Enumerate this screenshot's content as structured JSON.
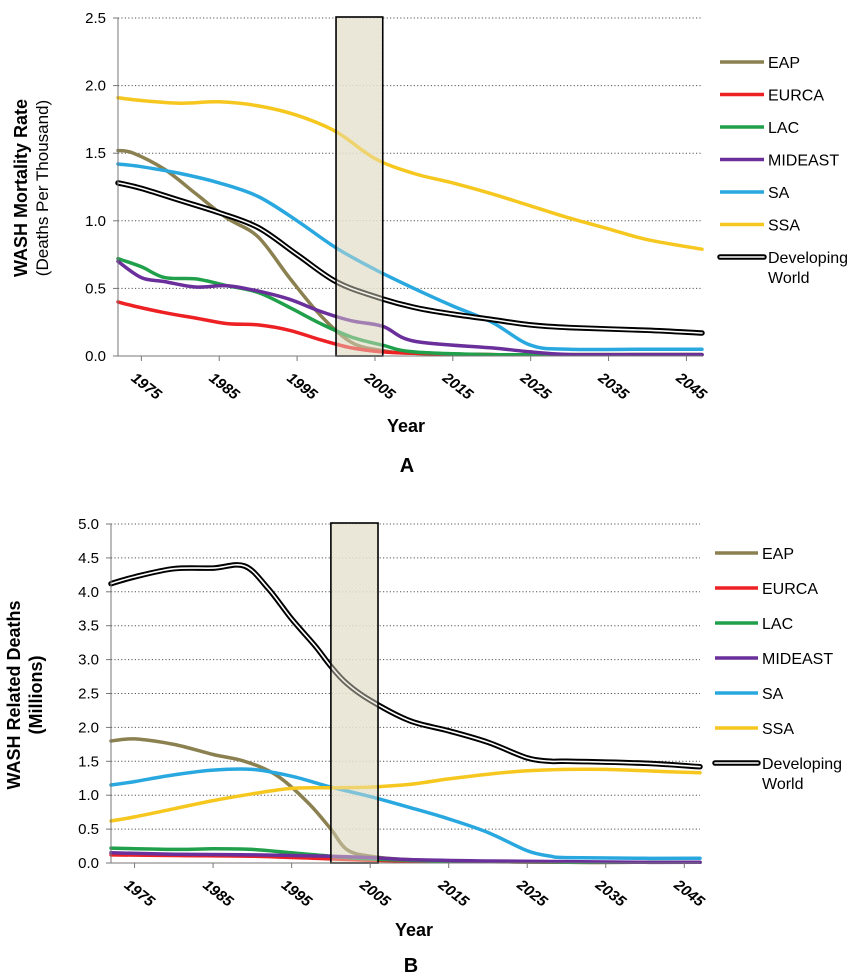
{
  "chart_data": [
    {
      "type": "line",
      "panel_label": "A",
      "xlabel": "Year",
      "ylabel_lines": [
        "WASH Mortality Rate",
        "(Deaths Per Thousand)"
      ],
      "xlim": [
        1972,
        2047
      ],
      "ylim": [
        0,
        2.5
      ],
      "x_ticks": [
        1975,
        1985,
        1995,
        2005,
        2015,
        2025,
        2035,
        2045
      ],
      "x_tick_labels": [
        "1975",
        "1985",
        "1995",
        "2005",
        "2015",
        "2025",
        "2035",
        "2045"
      ],
      "y_ticks": [
        0,
        0.5,
        1.0,
        1.5,
        2.0,
        2.5
      ],
      "y_tick_labels": [
        "0.0",
        "0.5",
        "1.0",
        "1.5",
        "2.0",
        "2.5"
      ],
      "grid": "horizontal dotted",
      "legend_position": "right",
      "highlight_band": [
        2000,
        2006
      ],
      "series": [
        {
          "name": "EAP",
          "color": "#8b8050",
          "x": [
            1972,
            1974,
            1978,
            1982,
            1986,
            1990,
            1994,
            1998,
            2002,
            2006,
            2010,
            2020,
            2030,
            2040,
            2047
          ],
          "y": [
            1.52,
            1.5,
            1.38,
            1.2,
            1.02,
            0.88,
            0.58,
            0.3,
            0.1,
            0.04,
            0.02,
            0.01,
            0.01,
            0.01,
            0.01
          ]
        },
        {
          "name": "EURCA",
          "color": "#ed2024",
          "x": [
            1972,
            1974,
            1978,
            1982,
            1986,
            1990,
            1994,
            1998,
            2002,
            2006,
            2010,
            2020,
            2030,
            2040,
            2047
          ],
          "y": [
            0.4,
            0.37,
            0.32,
            0.28,
            0.24,
            0.23,
            0.19,
            0.12,
            0.06,
            0.03,
            0.02,
            0.01,
            0.01,
            0.01,
            0.01
          ]
        },
        {
          "name": "LAC",
          "color": "#21a04b",
          "x": [
            1972,
            1975,
            1978,
            1982,
            1986,
            1990,
            1994,
            1998,
            2002,
            2006,
            2010,
            2020,
            2030,
            2040,
            2047
          ],
          "y": [
            0.72,
            0.66,
            0.58,
            0.57,
            0.52,
            0.47,
            0.36,
            0.24,
            0.14,
            0.08,
            0.03,
            0.01,
            0.01,
            0.01,
            0.01
          ]
        },
        {
          "name": "MIDEAST",
          "color": "#6a2f9b",
          "x": [
            1972,
            1975,
            1978,
            1982,
            1986,
            1990,
            1994,
            1998,
            2002,
            2006,
            2010,
            2020,
            2025,
            2030,
            2040,
            2047
          ],
          "y": [
            0.7,
            0.58,
            0.55,
            0.51,
            0.52,
            0.48,
            0.42,
            0.33,
            0.26,
            0.22,
            0.11,
            0.06,
            0.03,
            0.01,
            0.01,
            0.01
          ]
        },
        {
          "name": "SA",
          "color": "#29a8e0",
          "x": [
            1972,
            1975,
            1980,
            1985,
            1990,
            1995,
            2000,
            2005,
            2010,
            2015,
            2020,
            2025,
            2030,
            2040,
            2047
          ],
          "y": [
            1.42,
            1.4,
            1.35,
            1.28,
            1.18,
            1.0,
            0.8,
            0.64,
            0.5,
            0.37,
            0.25,
            0.08,
            0.05,
            0.05,
            0.05
          ]
        },
        {
          "name": "SSA",
          "color": "#f6c71e",
          "x": [
            1972,
            1975,
            1980,
            1985,
            1990,
            1995,
            2000,
            2005,
            2010,
            2015,
            2020,
            2025,
            2030,
            2035,
            2040,
            2047
          ],
          "y": [
            1.91,
            1.89,
            1.87,
            1.88,
            1.85,
            1.78,
            1.66,
            1.46,
            1.35,
            1.28,
            1.2,
            1.11,
            1.02,
            0.94,
            0.86,
            0.79
          ]
        },
        {
          "name": "Developing World",
          "color": "#000000",
          "outlined": true,
          "x": [
            1972,
            1975,
            1980,
            1985,
            1990,
            1995,
            2000,
            2005,
            2010,
            2015,
            2020,
            2025,
            2030,
            2040,
            2047
          ],
          "y": [
            1.28,
            1.24,
            1.15,
            1.06,
            0.95,
            0.75,
            0.55,
            0.44,
            0.36,
            0.31,
            0.27,
            0.23,
            0.21,
            0.19,
            0.17
          ]
        }
      ]
    },
    {
      "type": "line",
      "panel_label": "B",
      "xlabel": "Year",
      "ylabel_lines": [
        "WASH Related Deaths",
        "(Millions)"
      ],
      "xlim": [
        1972,
        2047
      ],
      "ylim": [
        0,
        5.0
      ],
      "x_ticks": [
        1975,
        1985,
        1995,
        2005,
        2015,
        2025,
        2035,
        2045
      ],
      "x_tick_labels": [
        "1975",
        "1985",
        "1995",
        "2005",
        "2015",
        "2025",
        "2035",
        "2045"
      ],
      "y_ticks": [
        0,
        0.5,
        1.0,
        1.5,
        2.0,
        2.5,
        3.0,
        3.5,
        4.0,
        4.5,
        5.0
      ],
      "y_tick_labels": [
        "0.0",
        "0.5",
        "1.0",
        "1.5",
        "2.0",
        "2.5",
        "3.0",
        "3.5",
        "4.0",
        "4.5",
        "5.0"
      ],
      "grid": "horizontal dotted",
      "legend_position": "right",
      "highlight_band": [
        2000,
        2006
      ],
      "series": [
        {
          "name": "EAP",
          "color": "#8b8050",
          "x": [
            1972,
            1975,
            1980,
            1985,
            1989,
            1993,
            1997,
            2000,
            2002,
            2005,
            2010,
            2020,
            2030,
            2040,
            2047
          ],
          "y": [
            1.8,
            1.83,
            1.75,
            1.6,
            1.5,
            1.3,
            0.9,
            0.5,
            0.2,
            0.1,
            0.05,
            0.02,
            0.01,
            0.01,
            0.01
          ]
        },
        {
          "name": "EURCA",
          "color": "#ed2024",
          "x": [
            1972,
            1980,
            1990,
            2000,
            2005,
            2010,
            2020,
            2030,
            2040,
            2047
          ],
          "y": [
            0.12,
            0.11,
            0.1,
            0.06,
            0.04,
            0.03,
            0.02,
            0.01,
            0.01,
            0.01
          ]
        },
        {
          "name": "LAC",
          "color": "#21a04b",
          "x": [
            1972,
            1980,
            1985,
            1990,
            1995,
            2000,
            2005,
            2010,
            2020,
            2030,
            2040,
            2047
          ],
          "y": [
            0.22,
            0.2,
            0.21,
            0.2,
            0.15,
            0.1,
            0.06,
            0.04,
            0.02,
            0.01,
            0.01,
            0.01
          ]
        },
        {
          "name": "MIDEAST",
          "color": "#6a2f9b",
          "x": [
            1972,
            1980,
            1990,
            2000,
            2005,
            2010,
            2020,
            2030,
            2040,
            2047
          ],
          "y": [
            0.15,
            0.13,
            0.12,
            0.1,
            0.08,
            0.05,
            0.03,
            0.02,
            0.01,
            0.01
          ]
        },
        {
          "name": "SA",
          "color": "#29a8e0",
          "x": [
            1972,
            1975,
            1980,
            1985,
            1990,
            1995,
            2000,
            2005,
            2010,
            2015,
            2020,
            2025,
            2028,
            2030,
            2040,
            2047
          ],
          "y": [
            1.15,
            1.2,
            1.3,
            1.37,
            1.38,
            1.28,
            1.12,
            0.98,
            0.82,
            0.65,
            0.45,
            0.18,
            0.1,
            0.08,
            0.07,
            0.07
          ]
        },
        {
          "name": "SSA",
          "color": "#f6c71e",
          "x": [
            1972,
            1975,
            1980,
            1985,
            1990,
            1995,
            2000,
            2005,
            2010,
            2015,
            2020,
            2025,
            2030,
            2035,
            2040,
            2047
          ],
          "y": [
            0.62,
            0.68,
            0.8,
            0.92,
            1.02,
            1.1,
            1.11,
            1.12,
            1.16,
            1.24,
            1.31,
            1.36,
            1.38,
            1.38,
            1.36,
            1.33
          ]
        },
        {
          "name": "Developing World",
          "color": "#000000",
          "outlined": true,
          "x": [
            1972,
            1975,
            1980,
            1985,
            1989,
            1992,
            1995,
            1998,
            2000,
            2002,
            2005,
            2010,
            2015,
            2020,
            2025,
            2028,
            2030,
            2040,
            2047
          ],
          "y": [
            4.12,
            4.22,
            4.34,
            4.35,
            4.38,
            4.05,
            3.6,
            3.2,
            2.9,
            2.65,
            2.4,
            2.1,
            1.95,
            1.78,
            1.55,
            1.5,
            1.5,
            1.47,
            1.42
          ]
        }
      ]
    }
  ]
}
